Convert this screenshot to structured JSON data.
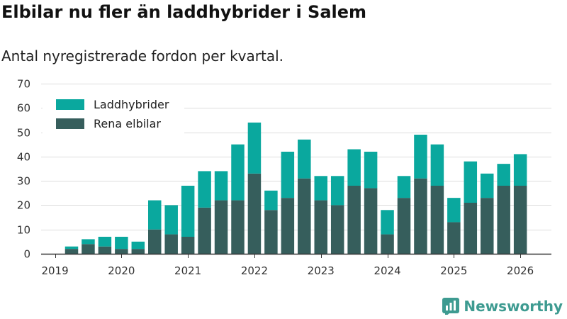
{
  "header": {
    "title": "Elbilar nu fler än laddhybrider i Salem",
    "subtitle": "Antal nyregistrerade fordon per kvartal."
  },
  "brand": {
    "name": "Newsworthy",
    "icon": "newsworthy-logo-icon"
  },
  "colors": {
    "laddhybrider": "#0aa89e",
    "elbilar": "#365e5c",
    "grid": "#dddddd",
    "axis": "#333333"
  },
  "chart_data": {
    "type": "bar",
    "stacked": true,
    "title": "Elbilar nu fler än laddhybrider i Salem",
    "subtitle": "Antal nyregistrerade fordon per kvartal.",
    "xlabel": "",
    "ylabel": "",
    "ylim": [
      0,
      70
    ],
    "yticks": [
      0,
      10,
      20,
      30,
      40,
      50,
      60,
      70
    ],
    "grid": true,
    "legend_position": "top-left",
    "x_tick_labels": [
      "2019",
      "2020",
      "2021",
      "2022",
      "2023",
      "2024",
      "2025",
      "2026"
    ],
    "categories": [
      "2019 Q2",
      "2019 Q3",
      "2019 Q4",
      "2020 Q1",
      "2020 Q2",
      "2020 Q3",
      "2020 Q4",
      "2021 Q1",
      "2021 Q2",
      "2021 Q3",
      "2021 Q4",
      "2022 Q1",
      "2022 Q2",
      "2022 Q3",
      "2022 Q4",
      "2023 Q1",
      "2023 Q2",
      "2023 Q3",
      "2023 Q4",
      "2024 Q1",
      "2024 Q2",
      "2024 Q3",
      "2024 Q4",
      "2025 Q1",
      "2025 Q2",
      "2025 Q3",
      "2025 Q4",
      "2026 Q1"
    ],
    "series": [
      {
        "name": "Rena elbilar",
        "values": [
          2,
          4,
          3,
          2,
          2,
          10,
          8,
          7,
          19,
          22,
          22,
          33,
          18,
          23,
          31,
          22,
          20,
          28,
          27,
          8,
          23,
          31,
          28,
          13,
          21,
          23,
          28,
          28
        ]
      },
      {
        "name": "Laddhybrider",
        "values": [
          1,
          2,
          4,
          5,
          3,
          12,
          12,
          21,
          15,
          12,
          23,
          21,
          8,
          19,
          16,
          10,
          12,
          15,
          15,
          10,
          9,
          18,
          17,
          10,
          17,
          10,
          9,
          13
        ]
      }
    ]
  }
}
